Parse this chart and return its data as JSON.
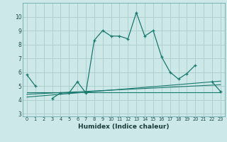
{
  "x": [
    0,
    1,
    2,
    3,
    4,
    5,
    6,
    7,
    8,
    9,
    10,
    11,
    12,
    13,
    14,
    15,
    16,
    17,
    18,
    19,
    20,
    21,
    22,
    23
  ],
  "main_line": [
    5.8,
    5.0,
    null,
    4.1,
    4.5,
    4.5,
    5.3,
    4.5,
    8.3,
    9.0,
    8.6,
    8.6,
    8.4,
    10.3,
    8.6,
    9.0,
    7.1,
    6.0,
    5.5,
    5.9,
    6.5,
    null,
    5.3,
    4.6
  ],
  "trend_line1": [
    4.2,
    4.25,
    4.3,
    4.35,
    4.4,
    4.45,
    4.5,
    4.55,
    4.6,
    4.65,
    4.7,
    4.75,
    4.8,
    4.85,
    4.9,
    4.95,
    5.0,
    5.05,
    5.1,
    5.15,
    5.2,
    5.25,
    5.3,
    5.35
  ],
  "trend_line2": [
    4.4,
    4.43,
    4.46,
    4.49,
    4.52,
    4.55,
    4.58,
    4.61,
    4.64,
    4.67,
    4.7,
    4.73,
    4.76,
    4.79,
    4.82,
    4.85,
    4.88,
    4.91,
    4.94,
    4.97,
    5.0,
    5.03,
    5.06,
    5.09
  ],
  "trend_line3": [
    4.55,
    4.55,
    4.55,
    4.55,
    4.55,
    4.55,
    4.55,
    4.55,
    4.55,
    4.55,
    4.55,
    4.55,
    4.55,
    4.55,
    4.55,
    4.55,
    4.55,
    4.55,
    4.55,
    4.55,
    4.55,
    4.55,
    4.55,
    4.55
  ],
  "line_color": "#1a7a6e",
  "bg_color": "#cce8e8",
  "grid_color": "#b0d0d0",
  "xlabel": "Humidex (Indice chaleur)",
  "ylabel_ticks": [
    3,
    4,
    5,
    6,
    7,
    8,
    9,
    10
  ],
  "ylim": [
    2.8,
    11.0
  ],
  "xlim": [
    -0.5,
    23.5
  ]
}
